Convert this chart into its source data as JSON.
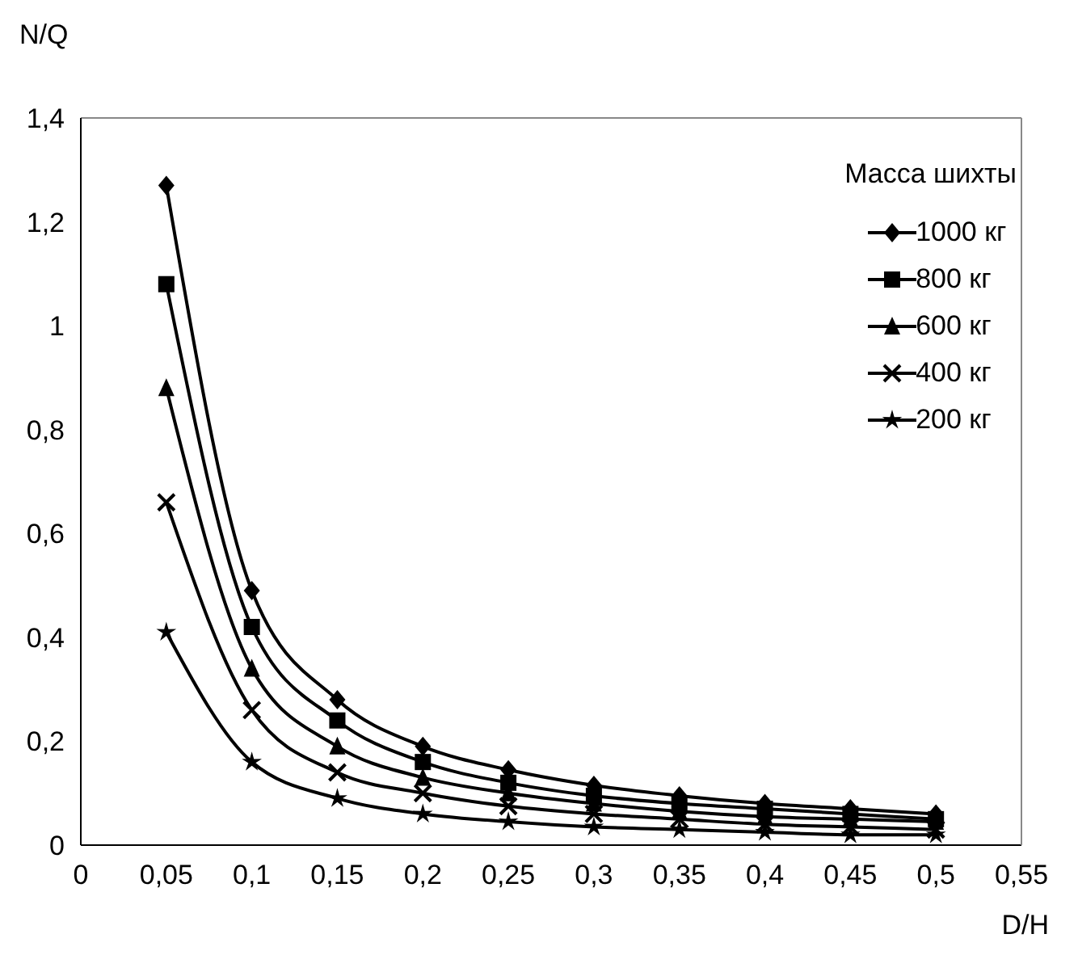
{
  "chart_data": {
    "type": "line",
    "xlabel": "D/H",
    "ylabel": "N/Q",
    "legend_title": "Масса шихты",
    "legend": "top right",
    "line_style": "solid",
    "x": [
      0.05,
      0.1,
      0.15,
      0.2,
      0.25,
      0.3,
      0.35,
      0.4,
      0.45,
      0.5
    ],
    "xlim": [
      0,
      0.55
    ],
    "xticks": [
      0,
      {
        "value": 0.05,
        "label": "0,05"
      },
      {
        "value": 0.1,
        "label": "0,1"
      },
      {
        "value": 0.15,
        "label": "0,15"
      },
      {
        "value": 0.2,
        "label": "0,2"
      },
      {
        "value": 0.25,
        "label": "0,25"
      },
      {
        "value": 0.3,
        "label": "0,3"
      },
      {
        "value": 0.35,
        "label": "0,35"
      },
      {
        "value": 0.4,
        "label": "0,4"
      },
      {
        "value": 0.45,
        "label": "0,45"
      },
      {
        "value": 0.5,
        "label": "0,5"
      },
      {
        "value": 0.55,
        "label": "0,55"
      }
    ],
    "ylim": [
      0,
      1.4
    ],
    "yticks": [
      0,
      {
        "value": 0.2,
        "label": "0,2"
      },
      {
        "value": 0.4,
        "label": "0,4"
      },
      {
        "value": 0.6,
        "label": "0,6"
      },
      {
        "value": 0.8,
        "label": "0,8"
      },
      1,
      {
        "value": 1.2,
        "label": "1,2"
      },
      {
        "value": 1.4,
        "label": "1,4"
      }
    ],
    "series": [
      {
        "name": "1000 кг",
        "color": "#000000",
        "marker": "diamond",
        "values": [
          1.27,
          0.49,
          0.28,
          0.19,
          0.145,
          0.115,
          0.095,
          0.08,
          0.07,
          0.06
        ]
      },
      {
        "name": "800 кг",
        "color": "#000000",
        "marker": "square",
        "values": [
          1.08,
          0.42,
          0.24,
          0.16,
          0.12,
          0.095,
          0.08,
          0.07,
          0.06,
          0.05
        ]
      },
      {
        "name": "600 кг",
        "color": "#000000",
        "marker": "triangle",
        "values": [
          0.88,
          0.34,
          0.19,
          0.13,
          0.1,
          0.08,
          0.065,
          0.055,
          0.05,
          0.045
        ]
      },
      {
        "name": "400 кг",
        "color": "#000000",
        "marker": "cross",
        "values": [
          0.66,
          0.26,
          0.14,
          0.1,
          0.075,
          0.06,
          0.05,
          0.04,
          0.035,
          0.03
        ]
      },
      {
        "name": "200 кг",
        "color": "#000000",
        "marker": "star",
        "values": [
          0.41,
          0.16,
          0.09,
          0.06,
          0.045,
          0.035,
          0.03,
          0.025,
          0.02,
          0.02
        ]
      }
    ]
  }
}
